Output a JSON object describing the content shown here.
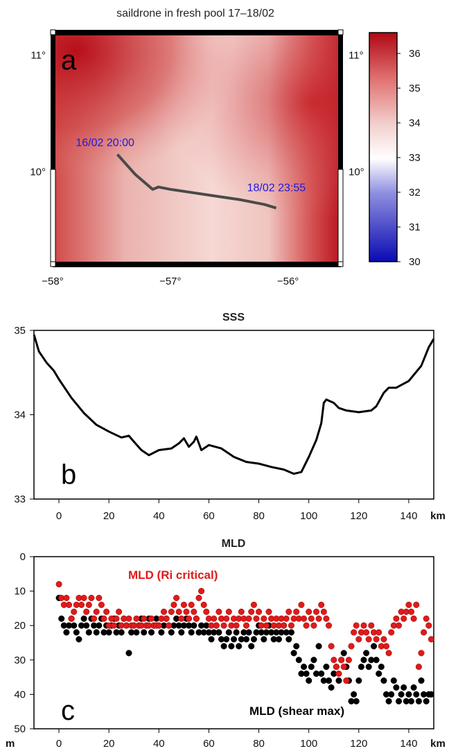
{
  "colors": {
    "high_salinity": "#c0101c",
    "mid_salinity": "#f2d0cd",
    "low_salinity": "#0a0ab4",
    "track": "#4a4a4a",
    "mld_ri": "#e01a1a",
    "mld_shear": "#000000",
    "annotation_text": "#1a1ae0"
  },
  "chart_data": [
    {
      "type": "heatmap",
      "panel_label": "a",
      "title": "saildrone in fresh pool 17–18/02",
      "x_ticks": [
        "−58°",
        "−57°",
        "−56°"
      ],
      "y_ticks_left": [
        "11°",
        "10°"
      ],
      "y_ticks_right": [
        "11°",
        "10°"
      ],
      "xlim": [
        -58.0,
        -55.55
      ],
      "ylim": [
        9.2,
        11.2
      ],
      "colorbar": {
        "range": [
          30,
          36.6
        ],
        "ticks": [
          "36",
          "35",
          "34",
          "33",
          "32",
          "31",
          "30"
        ]
      },
      "field_description_values": {
        "west_north": 36.2,
        "center": 34.6,
        "east": 35.9
      },
      "track": {
        "lon": [
          -57.45,
          -57.3,
          -57.15,
          -57.1,
          -57.0,
          -56.8,
          -56.6,
          -56.4,
          -56.2,
          -56.1
        ],
        "lat": [
          10.15,
          9.98,
          9.85,
          9.87,
          9.85,
          9.82,
          9.79,
          9.76,
          9.72,
          9.69
        ]
      },
      "annotations": [
        {
          "text": "16/02 20:00",
          "lon": -57.45,
          "lat": 10.15
        },
        {
          "text": "18/02 23:55",
          "lon": -56.1,
          "lat": 9.69
        }
      ]
    },
    {
      "type": "line",
      "panel_label": "b",
      "title": "SSS",
      "xlabel": "km",
      "xlim": [
        -10,
        150
      ],
      "ylim": [
        33,
        35
      ],
      "x_ticks": [
        "0",
        "20",
        "40",
        "60",
        "80",
        "100",
        "120",
        "140"
      ],
      "y_ticks": [
        "33",
        "34",
        "35"
      ],
      "series": [
        {
          "x": [
            -10,
            -8,
            -5,
            -2,
            0,
            5,
            10,
            15,
            20,
            25,
            28,
            30,
            33,
            36,
            40,
            45,
            48,
            50,
            52,
            54,
            55,
            57,
            60,
            65,
            70,
            75,
            80,
            85,
            90,
            94,
            97,
            100,
            103,
            105,
            106,
            107,
            110,
            112,
            115,
            120,
            125,
            127,
            130,
            132,
            135,
            140,
            145,
            148,
            150
          ],
          "y": [
            34.95,
            34.75,
            34.62,
            34.52,
            34.42,
            34.2,
            34.02,
            33.88,
            33.8,
            33.73,
            33.75,
            33.68,
            33.58,
            33.52,
            33.58,
            33.6,
            33.66,
            33.72,
            33.62,
            33.68,
            33.74,
            33.58,
            33.64,
            33.6,
            33.5,
            33.44,
            33.42,
            33.38,
            33.35,
            33.3,
            33.32,
            33.5,
            33.7,
            33.9,
            34.14,
            34.18,
            34.14,
            34.08,
            34.05,
            34.03,
            34.05,
            34.1,
            34.26,
            34.32,
            34.32,
            34.4,
            34.58,
            34.8,
            34.9
          ]
        }
      ]
    },
    {
      "type": "scatter",
      "panel_label": "c",
      "title": "MLD",
      "xlabel": "km",
      "ylabel": "m",
      "xlim": [
        -10,
        150
      ],
      "ylim": [
        50,
        0
      ],
      "x_ticks": [
        "0",
        "20",
        "40",
        "60",
        "80",
        "100",
        "120",
        "140"
      ],
      "y_ticks": [
        "0",
        "10",
        "20",
        "30",
        "40",
        "50"
      ],
      "series": [
        {
          "name": "MLD (Ri critical)",
          "x": [
            0,
            1,
            2,
            3,
            4,
            5,
            6,
            7,
            8,
            9,
            10,
            11,
            12,
            13,
            14,
            15,
            16,
            17,
            18,
            19,
            20,
            21,
            22,
            23,
            24,
            25,
            26,
            27,
            28,
            29,
            30,
            31,
            32,
            33,
            34,
            35,
            36,
            37,
            38,
            39,
            40,
            41,
            42,
            43,
            44,
            45,
            46,
            47,
            48,
            49,
            50,
            51,
            52,
            53,
            54,
            55,
            56,
            57,
            58,
            59,
            60,
            61,
            62,
            63,
            64,
            65,
            66,
            67,
            68,
            69,
            70,
            71,
            72,
            73,
            74,
            75,
            76,
            77,
            78,
            79,
            80,
            81,
            82,
            83,
            84,
            85,
            86,
            87,
            88,
            89,
            90,
            91,
            92,
            93,
            94,
            95,
            96,
            97,
            98,
            99,
            100,
            101,
            102,
            103,
            104,
            105,
            106,
            107,
            108,
            109,
            110,
            111,
            112,
            113,
            114,
            115,
            116,
            117,
            118,
            119,
            120,
            121,
            122,
            123,
            124,
            125,
            126,
            127,
            128,
            129,
            130,
            131,
            132,
            133,
            134,
            135,
            136,
            137,
            138,
            139,
            140,
            141,
            142,
            143,
            144,
            145,
            146,
            147,
            148,
            149
          ],
          "y": [
            8,
            12,
            14,
            12,
            14,
            18,
            16,
            14,
            12,
            14,
            12,
            16,
            14,
            12,
            18,
            16,
            12,
            14,
            18,
            16,
            20,
            18,
            20,
            18,
            16,
            20,
            18,
            20,
            18,
            20,
            20,
            18,
            20,
            20,
            18,
            20,
            20,
            18,
            20,
            20,
            20,
            18,
            16,
            18,
            20,
            16,
            14,
            12,
            16,
            18,
            14,
            16,
            18,
            14,
            16,
            18,
            12,
            10,
            14,
            16,
            18,
            20,
            18,
            20,
            16,
            18,
            20,
            18,
            16,
            20,
            18,
            20,
            18,
            16,
            18,
            20,
            18,
            16,
            14,
            18,
            16,
            20,
            18,
            20,
            16,
            18,
            20,
            18,
            20,
            18,
            20,
            18,
            16,
            20,
            18,
            16,
            18,
            14,
            18,
            20,
            16,
            18,
            20,
            16,
            18,
            14,
            16,
            18,
            20,
            26,
            30,
            32,
            34,
            30,
            32,
            36,
            30,
            26,
            22,
            20,
            24,
            22,
            20,
            22,
            24,
            20,
            22,
            24,
            22,
            26,
            24,
            26,
            28,
            22,
            20,
            18,
            20,
            16,
            18,
            16,
            14,
            16,
            18,
            14,
            32,
            28,
            22,
            18,
            20,
            24
          ]
        },
        {
          "name": "MLD (shear max)",
          "x": [
            0,
            1,
            2,
            3,
            4,
            5,
            6,
            7,
            8,
            9,
            10,
            11,
            12,
            13,
            14,
            15,
            16,
            17,
            18,
            19,
            20,
            21,
            22,
            23,
            24,
            25,
            26,
            27,
            28,
            29,
            30,
            31,
            32,
            33,
            34,
            35,
            36,
            37,
            38,
            39,
            40,
            41,
            42,
            43,
            44,
            45,
            46,
            47,
            48,
            49,
            50,
            51,
            52,
            53,
            54,
            55,
            56,
            57,
            58,
            59,
            60,
            61,
            62,
            63,
            64,
            65,
            66,
            67,
            68,
            69,
            70,
            71,
            72,
            73,
            74,
            75,
            76,
            77,
            78,
            79,
            80,
            81,
            82,
            83,
            84,
            85,
            86,
            87,
            88,
            89,
            90,
            91,
            92,
            93,
            94,
            95,
            96,
            97,
            98,
            99,
            100,
            101,
            102,
            103,
            104,
            105,
            106,
            107,
            108,
            109,
            110,
            111,
            112,
            113,
            114,
            115,
            116,
            117,
            118,
            119,
            120,
            121,
            122,
            123,
            124,
            125,
            126,
            127,
            128,
            129,
            130,
            131,
            132,
            133,
            134,
            135,
            136,
            137,
            138,
            139,
            140,
            141,
            142,
            143,
            144,
            145,
            146,
            147,
            148,
            149
          ],
          "y": [
            12,
            18,
            20,
            22,
            20,
            18,
            20,
            22,
            24,
            20,
            18,
            20,
            22,
            18,
            20,
            22,
            20,
            18,
            22,
            20,
            22,
            20,
            18,
            22,
            20,
            22,
            18,
            20,
            28,
            22,
            20,
            22,
            20,
            18,
            22,
            20,
            18,
            22,
            20,
            18,
            20,
            22,
            20,
            18,
            20,
            22,
            20,
            18,
            20,
            22,
            20,
            18,
            20,
            22,
            20,
            18,
            22,
            20,
            22,
            20,
            22,
            24,
            22,
            20,
            22,
            24,
            26,
            24,
            22,
            26,
            24,
            22,
            26,
            24,
            22,
            24,
            22,
            26,
            24,
            22,
            20,
            22,
            24,
            22,
            20,
            22,
            24,
            22,
            24,
            22,
            20,
            22,
            24,
            22,
            28,
            26,
            30,
            34,
            32,
            34,
            36,
            32,
            30,
            34,
            26,
            34,
            36,
            32,
            36,
            38,
            34,
            32,
            36,
            30,
            28,
            32,
            36,
            42,
            40,
            42,
            36,
            32,
            30,
            28,
            32,
            30,
            26,
            30,
            34,
            32,
            36,
            40,
            42,
            40,
            36,
            38,
            42,
            40,
            38,
            42,
            40,
            42,
            38,
            40,
            42,
            36,
            40,
            42,
            40,
            40
          ]
        }
      ]
    }
  ]
}
